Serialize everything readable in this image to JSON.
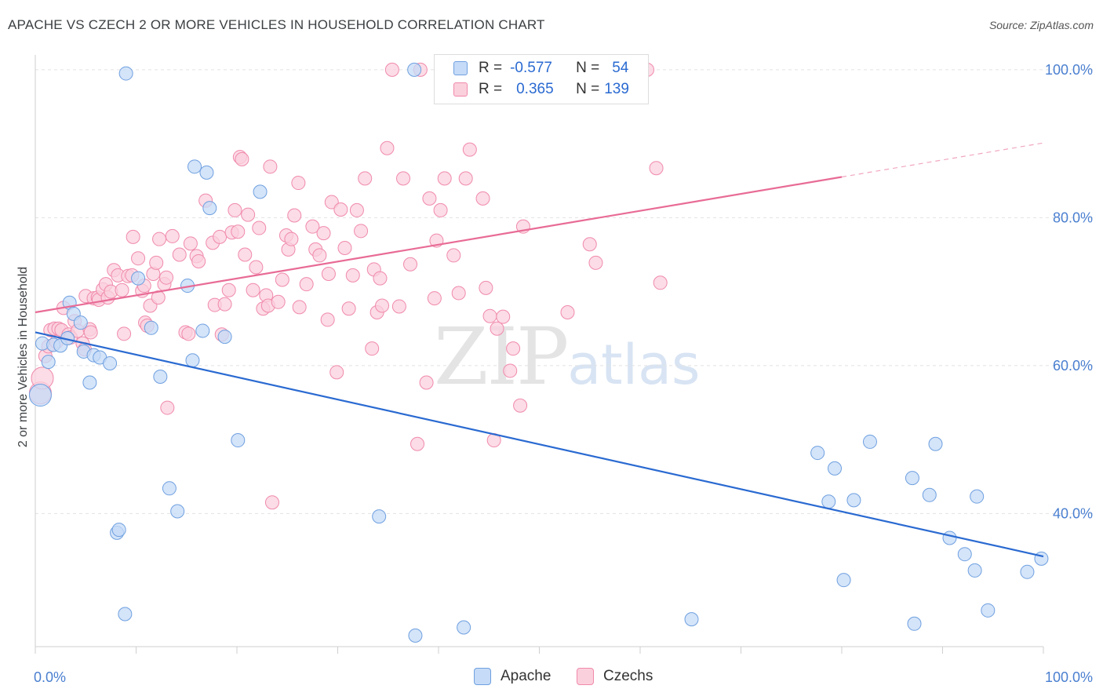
{
  "title": "APACHE VS CZECH 2 OR MORE VEHICLES IN HOUSEHOLD CORRELATION CHART",
  "source": "Source: ZipAtlas.com",
  "watermark": {
    "zip": "ZIP",
    "atlas": "atlas"
  },
  "colors": {
    "apache": "#6fa0e0",
    "apache_fill": "#c6dbf7",
    "apache_line": "#2a6ad1",
    "czech": "#f08aab",
    "czech_fill": "#fbd0dd",
    "czech_line": "#e86b96",
    "axis_text": "#4a7fd0"
  },
  "legend": {
    "rows": [
      {
        "r_label": "R =",
        "r_value": "-0.577",
        "n_label": "N =",
        "n_value": "54"
      },
      {
        "r_label": "R =",
        "r_value": "0.365",
        "n_label": "N =",
        "n_value": "139"
      }
    ]
  },
  "bottom_legend": {
    "apache": "Apache",
    "czechs": "Czechs"
  },
  "chart_data": {
    "type": "scatter",
    "title": "APACHE VS CZECH 2 OR MORE VEHICLES IN HOUSEHOLD CORRELATION CHART",
    "xlabel": "",
    "ylabel": "2 or more Vehicles in Household",
    "xlim": [
      0,
      100
    ],
    "ylim": [
      22,
      102
    ],
    "x_tick_labels": [
      "0.0%",
      "100.0%"
    ],
    "y_ticks": [
      40,
      60,
      80,
      100
    ],
    "y_tick_labels": [
      "40.0%",
      "60.0%",
      "80.0%",
      "100.0%"
    ],
    "grid": true,
    "legend_placement": "top-center",
    "series": [
      {
        "name": "Apache",
        "r": -0.577,
        "n": 54,
        "trend": {
          "x": [
            0,
            100
          ],
          "y": [
            64.5,
            34.2
          ]
        },
        "points": [
          [
            0.5,
            56
          ],
          [
            0.7,
            63
          ],
          [
            1.3,
            60.5
          ],
          [
            1.8,
            62.8
          ],
          [
            2.5,
            62.7
          ],
          [
            3.2,
            63.7
          ],
          [
            3.4,
            68.5
          ],
          [
            3.8,
            67
          ],
          [
            4.5,
            65.8
          ],
          [
            4.8,
            61.9
          ],
          [
            5.4,
            57.7
          ],
          [
            5.8,
            61.4
          ],
          [
            6.4,
            61.1
          ],
          [
            7.4,
            60.3
          ],
          [
            8.1,
            37.4
          ],
          [
            8.3,
            37.8
          ],
          [
            8.9,
            26.4
          ],
          [
            9,
            99.5
          ],
          [
            10.2,
            71.8
          ],
          [
            11.5,
            65.1
          ],
          [
            12.4,
            58.5
          ],
          [
            13.3,
            43.4
          ],
          [
            14.1,
            40.3
          ],
          [
            15.1,
            70.8
          ],
          [
            15.6,
            60.7
          ],
          [
            15.8,
            86.9
          ],
          [
            16.6,
            64.7
          ],
          [
            17,
            86.1
          ],
          [
            17.3,
            81.3
          ],
          [
            18.8,
            63.9
          ],
          [
            20.1,
            49.9
          ],
          [
            22.3,
            83.5
          ],
          [
            34.1,
            39.6
          ],
          [
            37.6,
            100
          ],
          [
            37.7,
            23.5
          ],
          [
            42.5,
            24.6
          ],
          [
            65.1,
            25.7
          ],
          [
            77.6,
            48.2
          ],
          [
            78.7,
            41.6
          ],
          [
            79.3,
            46.1
          ],
          [
            80.2,
            31
          ],
          [
            81.2,
            41.8
          ],
          [
            82.8,
            49.7
          ],
          [
            87,
            44.8
          ],
          [
            87.2,
            25.1
          ],
          [
            88.7,
            42.5
          ],
          [
            89.3,
            49.4
          ],
          [
            90.7,
            36.7
          ],
          [
            92.2,
            34.5
          ],
          [
            93.2,
            32.3
          ],
          [
            93.4,
            42.3
          ],
          [
            94.5,
            26.9
          ],
          [
            98.4,
            32.1
          ],
          [
            99.8,
            33.9
          ]
        ]
      },
      {
        "name": "Czechs",
        "r": 0.365,
        "n": 139,
        "trend": {
          "x": [
            0,
            80
          ],
          "y": [
            67.2,
            85.5
          ],
          "dashed_x": [
            80,
            100
          ],
          "dashed_y": [
            85.5,
            90.1
          ]
        },
        "points": [
          [
            0.5,
            56.3
          ],
          [
            0.7,
            58.3
          ],
          [
            1,
            61.3
          ],
          [
            1.3,
            62.6
          ],
          [
            1.5,
            64.8
          ],
          [
            1.9,
            65
          ],
          [
            2.1,
            63.2
          ],
          [
            2.3,
            65
          ],
          [
            2.6,
            64.8
          ],
          [
            2.8,
            67.8
          ],
          [
            3.3,
            64.2
          ],
          [
            3.5,
            63.8
          ],
          [
            3.9,
            66
          ],
          [
            4.2,
            64.7
          ],
          [
            4.7,
            63
          ],
          [
            4.9,
            62.2
          ],
          [
            5,
            69.4
          ],
          [
            5.4,
            64.9
          ],
          [
            5.5,
            64.5
          ],
          [
            5.8,
            69.1
          ],
          [
            6.2,
            69.2
          ],
          [
            6.3,
            68.9
          ],
          [
            6.7,
            70.3
          ],
          [
            7,
            71
          ],
          [
            7.2,
            69.2
          ],
          [
            7.5,
            70
          ],
          [
            7.8,
            72.9
          ],
          [
            8.2,
            72.2
          ],
          [
            8.6,
            70.2
          ],
          [
            8.8,
            64.3
          ],
          [
            9.2,
            72.1
          ],
          [
            9.6,
            72.2
          ],
          [
            9.7,
            77.4
          ],
          [
            10.2,
            74.5
          ],
          [
            10.6,
            70.1
          ],
          [
            10.8,
            70.8
          ],
          [
            10.9,
            65.8
          ],
          [
            11.1,
            65.4
          ],
          [
            11.4,
            68.1
          ],
          [
            11.7,
            72.4
          ],
          [
            12,
            73.9
          ],
          [
            12.2,
            69.2
          ],
          [
            12.3,
            77.1
          ],
          [
            12.8,
            71
          ],
          [
            13,
            71.9
          ],
          [
            13.1,
            54.3
          ],
          [
            13.6,
            77.5
          ],
          [
            14.3,
            75
          ],
          [
            14.9,
            64.5
          ],
          [
            15.2,
            64.3
          ],
          [
            15.4,
            76.5
          ],
          [
            16,
            74.8
          ],
          [
            16.2,
            74.1
          ],
          [
            16.9,
            82.3
          ],
          [
            17.6,
            76.6
          ],
          [
            17.8,
            68.2
          ],
          [
            18.3,
            77.4
          ],
          [
            18.5,
            64.2
          ],
          [
            18.8,
            68.3
          ],
          [
            19.2,
            70.2
          ],
          [
            19.5,
            78
          ],
          [
            19.8,
            81
          ],
          [
            20.1,
            78.1
          ],
          [
            20.3,
            88.2
          ],
          [
            20.5,
            87.9
          ],
          [
            20.8,
            75
          ],
          [
            21.1,
            80.4
          ],
          [
            21.6,
            70.2
          ],
          [
            21.9,
            73.3
          ],
          [
            22.2,
            78.6
          ],
          [
            22.6,
            67.7
          ],
          [
            22.9,
            69.5
          ],
          [
            23.1,
            68.1
          ],
          [
            23.3,
            86.9
          ],
          [
            23.5,
            41.5
          ],
          [
            24.1,
            68.6
          ],
          [
            24.5,
            71.6
          ],
          [
            24.9,
            77.6
          ],
          [
            25.1,
            75.7
          ],
          [
            25.4,
            77.1
          ],
          [
            25.7,
            80.3
          ],
          [
            26.1,
            84.7
          ],
          [
            26.2,
            67.9
          ],
          [
            26.9,
            71
          ],
          [
            27.5,
            78.8
          ],
          [
            27.8,
            75.7
          ],
          [
            28.2,
            74.9
          ],
          [
            28.6,
            77.9
          ],
          [
            29,
            66.2
          ],
          [
            29.1,
            72.4
          ],
          [
            29.4,
            82.1
          ],
          [
            29.9,
            59.1
          ],
          [
            30.3,
            81.1
          ],
          [
            30.7,
            75.9
          ],
          [
            31.1,
            67.7
          ],
          [
            31.5,
            72.2
          ],
          [
            31.9,
            81
          ],
          [
            32.3,
            78.2
          ],
          [
            32.7,
            85.3
          ],
          [
            33.4,
            62.3
          ],
          [
            33.6,
            73
          ],
          [
            33.9,
            67.2
          ],
          [
            34.2,
            71.8
          ],
          [
            34.4,
            68.1
          ],
          [
            34.9,
            89.4
          ],
          [
            35.4,
            100
          ],
          [
            36.1,
            68
          ],
          [
            36.5,
            85.3
          ],
          [
            37.2,
            73.7
          ],
          [
            37.9,
            49.4
          ],
          [
            38.2,
            100
          ],
          [
            38.8,
            57.7
          ],
          [
            39.1,
            82.6
          ],
          [
            39.6,
            69.1
          ],
          [
            39.8,
            76.9
          ],
          [
            40.2,
            81
          ],
          [
            40.6,
            85.3
          ],
          [
            41.5,
            74.9
          ],
          [
            42,
            69.8
          ],
          [
            42.7,
            85.3
          ],
          [
            43.1,
            89.2
          ],
          [
            44.4,
            82.6
          ],
          [
            44.7,
            70.5
          ],
          [
            45.1,
            66.7
          ],
          [
            45.5,
            49.9
          ],
          [
            45.8,
            65
          ],
          [
            46.4,
            66.6
          ],
          [
            47.1,
            59.3
          ],
          [
            47.4,
            62.3
          ],
          [
            48.1,
            54.6
          ],
          [
            48.4,
            78.8
          ],
          [
            52.5,
            100
          ],
          [
            52.8,
            67.2
          ],
          [
            55,
            76.4
          ],
          [
            55.6,
            73.9
          ],
          [
            60.7,
            100
          ],
          [
            61.6,
            86.7
          ],
          [
            62,
            71.2
          ]
        ]
      }
    ]
  }
}
